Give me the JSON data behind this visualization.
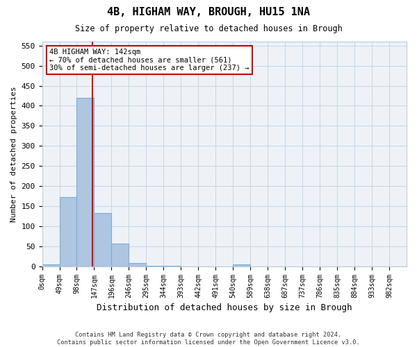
{
  "title": "4B, HIGHAM WAY, BROUGH, HU15 1NA",
  "subtitle": "Size of property relative to detached houses in Brough",
  "xlabel": "Distribution of detached houses by size in Brough",
  "ylabel": "Number of detached properties",
  "bar_color": "#aec6e0",
  "bar_edge_color": "#7aafd4",
  "bin_edges": [
    0,
    49,
    98,
    147,
    196,
    245,
    294,
    343,
    392,
    441,
    490,
    539,
    588,
    637,
    686,
    735,
    784,
    833,
    882,
    931,
    980,
    1029
  ],
  "bin_labels": [
    "0sqm",
    "49sqm",
    "98sqm",
    "147sqm",
    "196sqm",
    "246sqm",
    "295sqm",
    "344sqm",
    "393sqm",
    "442sqm",
    "491sqm",
    "540sqm",
    "589sqm",
    "638sqm",
    "687sqm",
    "737sqm",
    "786sqm",
    "835sqm",
    "884sqm",
    "933sqm",
    "982sqm"
  ],
  "counts": [
    5,
    172,
    420,
    132,
    57,
    8,
    2,
    1,
    0,
    0,
    0,
    5,
    0,
    0,
    0,
    0,
    0,
    0,
    0,
    0,
    0
  ],
  "property_size": 142,
  "property_line_color": "#cc0000",
  "annotation_line1": "4B HIGHAM WAY: 142sqm",
  "annotation_line2": "← 70% of detached houses are smaller (561)",
  "annotation_line3": "30% of semi-detached houses are larger (237) →",
  "annotation_box_color": "#ffffff",
  "annotation_box_edge": "#cc0000",
  "ylim": [
    0,
    560
  ],
  "yticks": [
    0,
    50,
    100,
    150,
    200,
    250,
    300,
    350,
    400,
    450,
    500,
    550
  ],
  "grid_color": "#c8d8e8",
  "background_color": "#eef2f7",
  "footer": "Contains HM Land Registry data © Crown copyright and database right 2024.\nContains public sector information licensed under the Open Government Licence v3.0."
}
